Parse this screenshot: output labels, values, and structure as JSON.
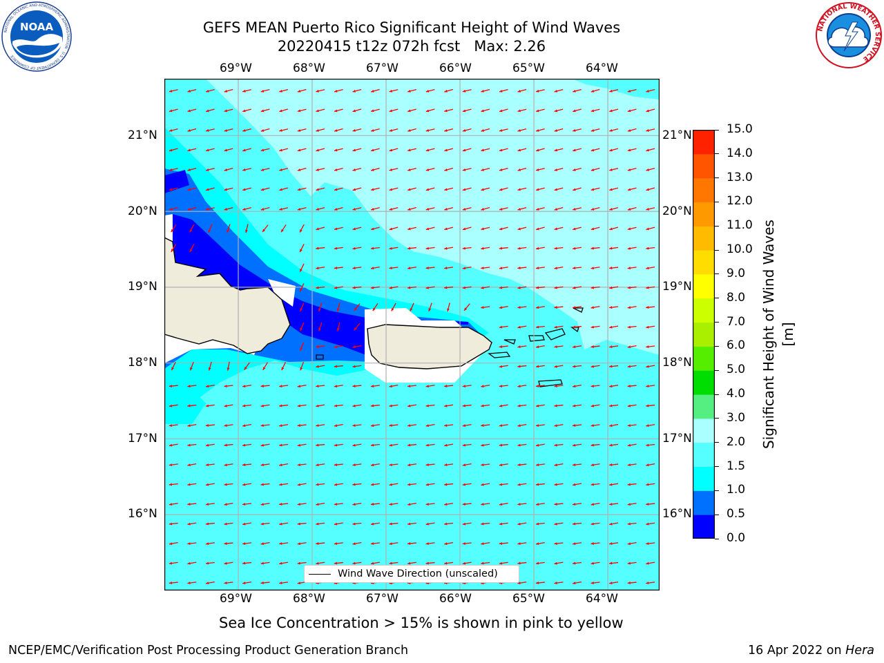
{
  "title": {
    "line1": "GEFS MEAN Puerto Rico Significant Height of Wind Waves",
    "line2": "20220415 t12z 072h fcst   Max: 2.26"
  },
  "logos": {
    "left": {
      "icon": "noaa-logo-icon",
      "text": "NOAA",
      "ring": "NATIONAL OCEANIC AND ATMOSPHERIC ADMINISTRATION · U.S. DEPARTMENT OF COMMERCE"
    },
    "right": {
      "icon": "nws-logo-icon",
      "ring": "NATIONAL WEATHER SERVICE"
    }
  },
  "map": {
    "lon_labels": [
      "69°W",
      "68°W",
      "67°W",
      "66°W",
      "65°W",
      "64°W"
    ],
    "lat_labels": [
      "21°N",
      "20°N",
      "19°N",
      "18°N",
      "17°N",
      "16°N"
    ],
    "lon_range": [
      -70.0,
      -63.3
    ],
    "lat_range": [
      15.0,
      21.75
    ],
    "legend_label": "Wind Wave Direction (unscaled)",
    "arrow_color": "#ff0000",
    "land_color": "#efecdc"
  },
  "colorbar": {
    "label": "Significant Height of Wind Waves [m]",
    "ticks": [
      "0.0",
      "0.5",
      "1.0",
      "1.5",
      "2.0",
      "3.0",
      "4.0",
      "5.0",
      "6.0",
      "7.0",
      "8.0",
      "9.0",
      "10.0",
      "11.0",
      "12.0",
      "13.0",
      "14.0",
      "15.0"
    ],
    "colors": [
      "#0000ff",
      "#0070ff",
      "#00ffff",
      "#55ffff",
      "#aaffff",
      "#55ee80",
      "#00dd00",
      "#55ee00",
      "#aaee00",
      "#ccff00",
      "#ffff00",
      "#ffdd00",
      "#ffbb00",
      "#ff9900",
      "#ff7700",
      "#ff5500",
      "#ff2200"
    ]
  },
  "note": "Sea Ice Concentration > 15% is shown in pink to yellow",
  "footer": {
    "left": "NCEP/EMC/Verification Post Processing Product Generation Branch",
    "date": "16 Apr 2022 on ",
    "host": "Hera"
  }
}
